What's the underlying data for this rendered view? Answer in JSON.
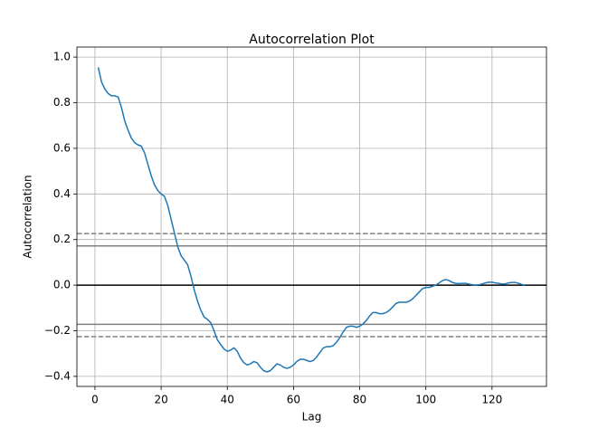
{
  "chart_data": {
    "type": "line",
    "title": "Autocorrelation Plot",
    "xlabel": "Lag",
    "ylabel": "Autocorrelation",
    "x": [
      1,
      2,
      3,
      4,
      5,
      6,
      7,
      8,
      9,
      10,
      11,
      12,
      13,
      14,
      15,
      16,
      17,
      18,
      19,
      20,
      21,
      22,
      23,
      24,
      25,
      26,
      27,
      28,
      29,
      30,
      31,
      32,
      33,
      34,
      35,
      36,
      37,
      38,
      39,
      40,
      41,
      42,
      43,
      44,
      45,
      46,
      47,
      48,
      49,
      50,
      51,
      52,
      53,
      54,
      55,
      56,
      57,
      58,
      59,
      60,
      61,
      62,
      63,
      64,
      65,
      66,
      67,
      68,
      69,
      70,
      71,
      72,
      73,
      74,
      75,
      76,
      77,
      78,
      79,
      80,
      81,
      82,
      83,
      84,
      85,
      86,
      87,
      88,
      89,
      90,
      91,
      92,
      93,
      94,
      95,
      96,
      97,
      98,
      99,
      100,
      101,
      102,
      103,
      104,
      105,
      106,
      107,
      108,
      109,
      110,
      111,
      112,
      113,
      114,
      115,
      116,
      117,
      118,
      119,
      120,
      121,
      122,
      123,
      124,
      125,
      126,
      127,
      128,
      129,
      130
    ],
    "series": [
      {
        "color": "#1f77b4",
        "values": [
          0.955,
          0.89,
          0.86,
          0.84,
          0.83,
          0.83,
          0.825,
          0.78,
          0.72,
          0.68,
          0.645,
          0.625,
          0.615,
          0.61,
          0.58,
          0.53,
          0.48,
          0.44,
          0.415,
          0.4,
          0.39,
          0.35,
          0.29,
          0.23,
          0.17,
          0.13,
          0.11,
          0.09,
          0.04,
          -0.02,
          -0.07,
          -0.11,
          -0.14,
          -0.15,
          -0.165,
          -0.2,
          -0.24,
          -0.26,
          -0.28,
          -0.29,
          -0.285,
          -0.275,
          -0.29,
          -0.32,
          -0.34,
          -0.35,
          -0.345,
          -0.335,
          -0.34,
          -0.36,
          -0.375,
          -0.38,
          -0.375,
          -0.36,
          -0.345,
          -0.35,
          -0.36,
          -0.365,
          -0.36,
          -0.35,
          -0.335,
          -0.325,
          -0.325,
          -0.33,
          -0.335,
          -0.33,
          -0.315,
          -0.295,
          -0.275,
          -0.27,
          -0.27,
          -0.265,
          -0.25,
          -0.23,
          -0.205,
          -0.185,
          -0.18,
          -0.18,
          -0.185,
          -0.18,
          -0.17,
          -0.155,
          -0.135,
          -0.12,
          -0.12,
          -0.125,
          -0.125,
          -0.12,
          -0.11,
          -0.095,
          -0.08,
          -0.075,
          -0.075,
          -0.075,
          -0.07,
          -0.06,
          -0.045,
          -0.03,
          -0.015,
          -0.01,
          -0.01,
          -0.005,
          0.0,
          0.01,
          0.02,
          0.025,
          0.02,
          0.012,
          0.008,
          0.007,
          0.008,
          0.008,
          0.005,
          0.002,
          0.0,
          0.002,
          0.005,
          0.01,
          0.013,
          0.013,
          0.01,
          0.008,
          0.005,
          0.006,
          0.01,
          0.012,
          0.012,
          0.008,
          0.003,
          0.0
        ]
      }
    ],
    "hlines": [
      0.2259,
      0.1719,
      0,
      -0.1719,
      -0.2259
    ],
    "hline_styles": [
      "dashed",
      "solid",
      "solid",
      "solid",
      "dashed"
    ],
    "hline_colors": [
      "grey",
      "grey",
      "black",
      "grey",
      "grey"
    ],
    "xlim": [
      -5.45,
      136.45
    ],
    "ylim": [
      -0.444,
      1.044
    ],
    "xticks": [
      0,
      20,
      40,
      60,
      80,
      100,
      120
    ],
    "yticks": [
      {
        "value": -0.4,
        "label": "−0.4"
      },
      {
        "value": -0.2,
        "label": "−0.2"
      },
      {
        "value": 0,
        "label": "0.0"
      },
      {
        "value": 0.2,
        "label": "0.2"
      },
      {
        "value": 0.4,
        "label": "0.4"
      },
      {
        "value": 0.6,
        "label": "0.6"
      },
      {
        "value": 0.8,
        "label": "0.8"
      },
      {
        "value": 1,
        "label": "1.0"
      }
    ],
    "grid": true
  }
}
